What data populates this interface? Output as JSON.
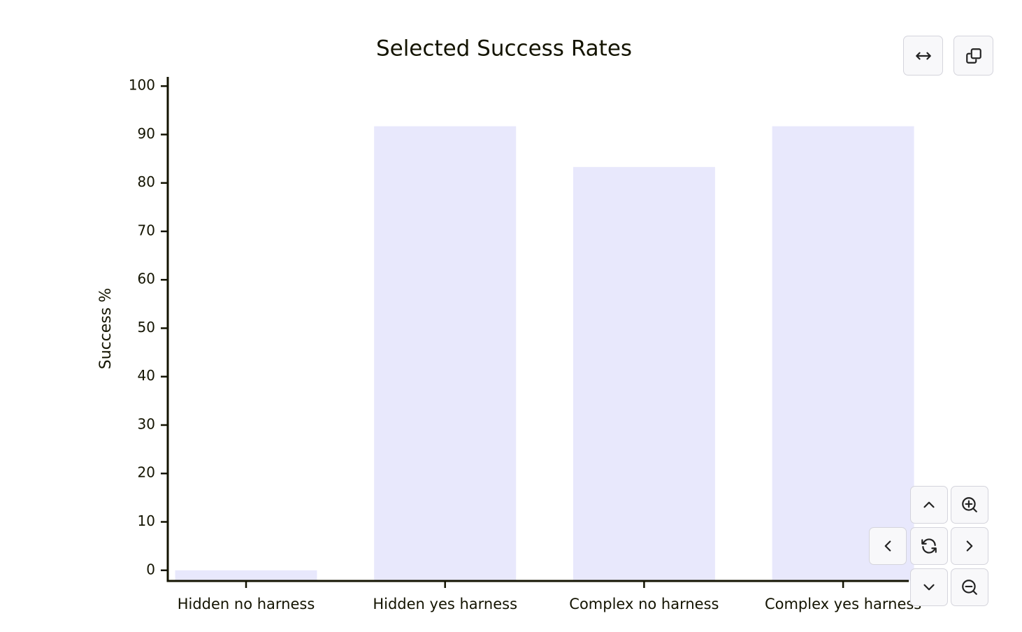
{
  "chart_data": {
    "type": "bar",
    "title": "Selected Success Rates",
    "y_label": "Success %",
    "categories": [
      "Hidden no harness",
      "Hidden yes harness",
      "Complex no harness",
      "Complex yes harness"
    ],
    "values": [
      0,
      91.7,
      83.3,
      91.7
    ],
    "color": "#e8e8fc",
    "ylim": [
      -2.2,
      101.9
    ],
    "yticks": [
      0,
      10,
      20,
      30,
      40,
      50,
      60,
      70,
      80,
      90,
      100
    ],
    "grid": false
  }
}
